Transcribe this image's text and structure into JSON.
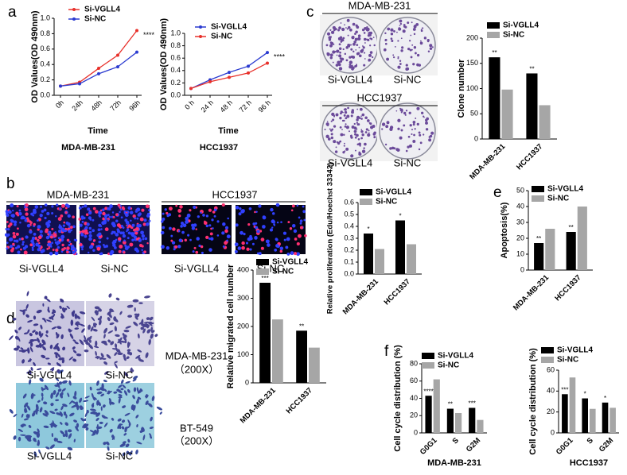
{
  "panel_letters": [
    "a",
    "b",
    "c",
    "d",
    "e",
    "f"
  ],
  "image_panels": [
    {
      "texts": [
        "MDA-MB-231",
        "Si-VGLL4",
        "Si-NC",
        "HCC1937",
        "Si-VGLL4",
        "Si-NC"
      ]
    },
    {
      "texts": [
        "MDA-MB-231",
        "HCC1937",
        "Si-VGLL4",
        "Si-NC",
        "Si-VGLL4",
        "Si-NC"
      ]
    },
    {
      "texts": [
        "MDA-MB-231",
        "（200X）",
        "BT-549",
        "（200X）",
        "Si-VGLL4",
        "Si-NC",
        "Si-VGLL4",
        "Si-NC"
      ]
    }
  ],
  "chart_data": [
    {
      "type": "line",
      "y_label": "OD Values(OD 490nm)",
      "x_label": "Time",
      "subtitle": "MDA-MB-231",
      "annotation": "****",
      "categories": [
        "0h",
        "24h",
        "48h",
        "72h",
        "96h"
      ],
      "series": [
        {
          "name": "Si-VGLL4",
          "color": "#e8302a",
          "values": [
            0.12,
            0.17,
            0.35,
            0.52,
            0.84
          ]
        },
        {
          "name": "Si-NC",
          "color": "#2b3bd0",
          "values": [
            0.12,
            0.15,
            0.28,
            0.37,
            0.56
          ]
        }
      ],
      "ylim": [
        0,
        1.0
      ],
      "yticks": [
        {
          "value": 0,
          "label": "0.0"
        },
        0.2,
        0.4,
        0.6,
        0.8,
        {
          "value": 1.0,
          "label": "1.0"
        }
      ]
    },
    {
      "type": "line",
      "y_label": "OD Values(OD 490nm)",
      "x_label": "Time",
      "subtitle": "HCC1937",
      "annotation": "****",
      "categories": [
        "0 h",
        "24 h",
        "48 h",
        "72 h",
        "96 h"
      ],
      "series": [
        {
          "name": "Si-VGLL4",
          "color": "#2b3bd0",
          "values": [
            0.11,
            0.25,
            0.37,
            0.47,
            0.69
          ]
        },
        {
          "name": "Si-NC",
          "color": "#e8302a",
          "values": [
            0.11,
            0.22,
            0.29,
            0.36,
            0.52
          ]
        }
      ],
      "ylim": [
        0,
        1.0
      ],
      "yticks": [
        {
          "value": 0,
          "label": "0.0"
        },
        0.2,
        0.4,
        0.6,
        0.8,
        {
          "value": 1.0,
          "label": "1.0"
        }
      ]
    },
    {
      "type": "bar",
      "y_label": "Clone number",
      "categories": [
        "MDA-MB-231",
        "HCC1937"
      ],
      "series": [
        {
          "name": "Si-VGLL4",
          "color": "#000000",
          "values": [
            162,
            130
          ],
          "annotations": [
            "**",
            "**"
          ]
        },
        {
          "name": "Si-NC",
          "color": "#a6a6a6",
          "values": [
            98,
            67
          ]
        }
      ],
      "ylim": [
        0,
        200
      ],
      "yticks": [
        0,
        50,
        100,
        150,
        200
      ]
    },
    {
      "type": "bar",
      "y_label": "Relative proliferation (Edu/Hoechst 33342)",
      "categories": [
        "MDA-MB-231",
        "HCC1937"
      ],
      "series": [
        {
          "name": "Si-VGLL4",
          "color": "#000000",
          "values": [
            0.34,
            0.45
          ],
          "annotations": [
            "*",
            "*"
          ]
        },
        {
          "name": "Si-NC",
          "color": "#a6a6a6",
          "values": [
            0.21,
            0.25
          ]
        }
      ],
      "ylim": [
        0,
        0.6
      ],
      "yticks": [
        {
          "value": 0,
          "label": "0.0"
        },
        0.1,
        0.2,
        0.3,
        0.4,
        0.5,
        0.6
      ]
    },
    {
      "type": "bar",
      "y_label": "Apoptosis(%)",
      "categories": [
        "MDA-MB-231",
        "HCC1937"
      ],
      "series": [
        {
          "name": "Si-VGLL4",
          "color": "#000000",
          "values": [
            17,
            24
          ],
          "annotations": [
            "**",
            "**"
          ]
        },
        {
          "name": "Si-NC",
          "color": "#a6a6a6",
          "values": [
            26,
            40
          ]
        }
      ],
      "ylim": [
        0,
        50
      ],
      "yticks": [
        0,
        10,
        20,
        30,
        40,
        50
      ]
    },
    {
      "type": "bar",
      "y_label": "Relative migrated cell number",
      "categories": [
        "MDA-MB-231",
        "HCC1937"
      ],
      "series": [
        {
          "name": "Si-VGLL4",
          "color": "#000000",
          "values": [
            355,
            185
          ],
          "annotations": [
            "***",
            "**"
          ]
        },
        {
          "name": "Si-NC",
          "color": "#a6a6a6",
          "values": [
            225,
            125
          ]
        }
      ],
      "ylim": [
        0,
        400
      ],
      "yticks": [
        0,
        100,
        200,
        300,
        400
      ]
    },
    {
      "type": "bar",
      "y_label": "Cell cycle distribution (%)",
      "subtitle": "MDA-MB-231",
      "categories": [
        "G0G1",
        "S",
        "G2M"
      ],
      "series": [
        {
          "name": "Si-VGLL4",
          "color": "#000000",
          "values": [
            43,
            28,
            29
          ],
          "annotations": [
            "****",
            "**",
            "***"
          ]
        },
        {
          "name": "Si-NC",
          "color": "#a6a6a6",
          "values": [
            62,
            23,
            15
          ]
        }
      ],
      "ylim": [
        0,
        80
      ],
      "yticks": [
        0,
        20,
        40,
        60,
        80
      ]
    },
    {
      "type": "bar",
      "y_label": "Cell cycle distribution (%)",
      "subtitle": "HCC1937",
      "categories": [
        "G0G1",
        "S",
        "G2M"
      ],
      "series": [
        {
          "name": "Si-VGLL4",
          "color": "#000000",
          "values": [
            37,
            33,
            29
          ],
          "annotations": [
            "***",
            "*",
            "*"
          ]
        },
        {
          "name": "Si-NC",
          "color": "#a6a6a6",
          "values": [
            53,
            23,
            24
          ]
        }
      ],
      "ylim": [
        0,
        60
      ],
      "yticks": [
        0,
        20,
        40,
        60
      ]
    }
  ]
}
